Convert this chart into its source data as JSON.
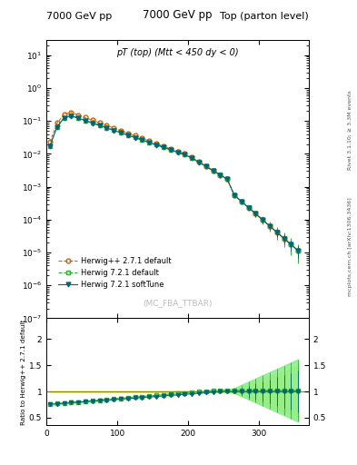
{
  "title_left": "7000 GeV pp",
  "title_right": "Top (parton level)",
  "plot_title": "pT (top) (Mtt < 450 dy < 0)",
  "watermark": "(MC_FBA_TTBAR)",
  "right_label_top": "Rivet 3.1.10; ≥ 3.3M events",
  "right_label_bot": "mcplots.cern.ch [arXiv:1306.3436]",
  "ylabel_ratio": "Ratio to Herwig++ 2.7.1 default",
  "ylim_main": [
    1e-07,
    30
  ],
  "ylim_ratio": [
    0.35,
    2.4
  ],
  "xlim": [
    0,
    370
  ],
  "xticks": [
    0,
    100,
    200,
    300
  ],
  "xticklabels": [
    "0",
    "100",
    "200",
    "300"
  ],
  "ratio_yticks": [
    0.5,
    1.0,
    1.5,
    2.0
  ],
  "ratio_yticklabels": [
    "0.5",
    "1",
    "1.5",
    "2"
  ],
  "colors": {
    "herwig271": "#cc6600",
    "herwig721": "#33aa33",
    "herwig721soft": "#006677",
    "band271": "#eeee88",
    "band721": "#88ee88"
  },
  "legend": [
    {
      "label": "Herwig++ 2.7.1 default",
      "color": "#cc6600",
      "marker": "o",
      "ls": "--"
    },
    {
      "label": "Herwig 7.2.1 default",
      "color": "#33aa33",
      "marker": "s",
      "ls": "--"
    },
    {
      "label": "Herwig 7.2.1 softTune",
      "color": "#006677",
      "marker": "v",
      "ls": "-"
    }
  ]
}
